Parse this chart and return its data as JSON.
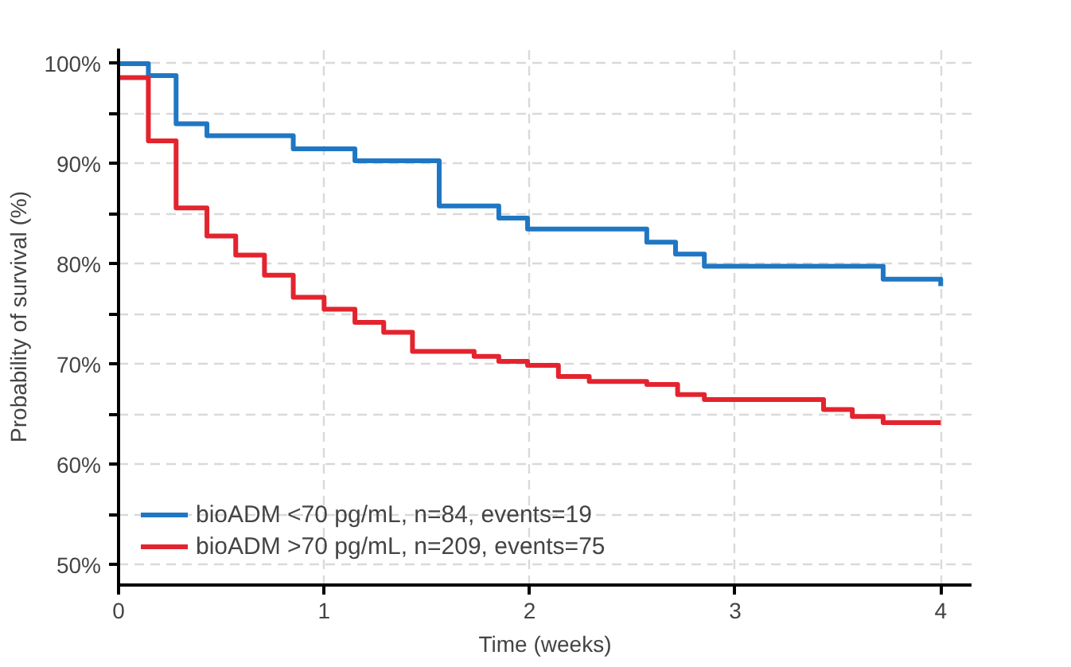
{
  "chart_data": {
    "type": "step",
    "xlabel": "Time (weeks)",
    "ylabel": "Probability of survival (%)",
    "xlim": [
      0,
      4.15
    ],
    "ylim": [
      48,
      101.5
    ],
    "xticks": [
      0,
      1,
      2,
      3,
      4
    ],
    "yticks": [
      {
        "value": 50,
        "label": "50%"
      },
      {
        "value": 55,
        "label": null
      },
      {
        "value": 60,
        "label": "60%"
      },
      {
        "value": 65,
        "label": null
      },
      {
        "value": 70,
        "label": "70%"
      },
      {
        "value": 75,
        "label": null
      },
      {
        "value": 80,
        "label": "80%"
      },
      {
        "value": 85,
        "label": null
      },
      {
        "value": 90,
        "label": "90%"
      },
      {
        "value": 95,
        "label": null
      },
      {
        "value": 100,
        "label": "100%"
      }
    ],
    "grid": true,
    "legend": "bottom left",
    "line_style": "solid",
    "marker": "none",
    "series": [
      {
        "name": "bioADM <70 pg/mL, n=84, events=19",
        "color": "#1f77c4",
        "x": [
          0,
          0.145,
          0.28,
          0.43,
          0.85,
          1.15,
          1.56,
          1.85,
          1.99,
          2.57,
          2.71,
          2.85,
          3.72,
          4.0
        ],
        "values": [
          100,
          98.8,
          94,
          92.8,
          91.5,
          90.3,
          85.8,
          84.6,
          83.5,
          82.2,
          81,
          79.8,
          78.5,
          77.8
        ]
      },
      {
        "name": "bioADM >70 pg/mL, n=209, events=75",
        "color": "#e3242f",
        "x": [
          0,
          0.145,
          0.28,
          0.43,
          0.57,
          0.71,
          0.85,
          1.0,
          1.15,
          1.29,
          1.43,
          1.73,
          1.85,
          1.99,
          2.14,
          2.29,
          2.57,
          2.72,
          2.85,
          3.43,
          3.57,
          3.72,
          4.0
        ],
        "values": [
          98.6,
          92.3,
          85.6,
          82.8,
          80.9,
          78.9,
          76.7,
          75.5,
          74.2,
          73.2,
          71.3,
          70.8,
          70.3,
          69.9,
          68.8,
          68.3,
          68.0,
          67.0,
          66.5,
          65.5,
          64.8,
          64.2,
          64.2
        ]
      }
    ]
  }
}
